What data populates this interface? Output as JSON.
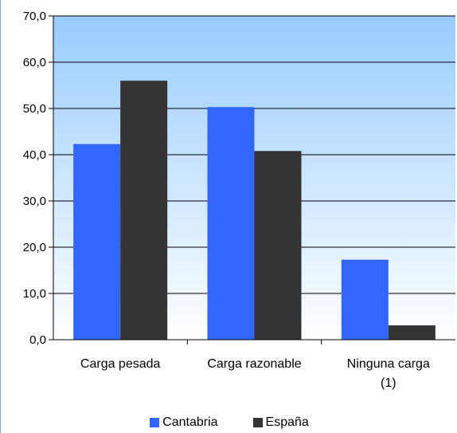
{
  "chart_data": {
    "type": "bar",
    "title": "",
    "xlabel": "",
    "ylabel": "",
    "categories": [
      {
        "lines": [
          "Carga pesada"
        ]
      },
      {
        "lines": [
          "Carga razonable"
        ]
      },
      {
        "lines": [
          "Ninguna carga",
          "(1)"
        ]
      }
    ],
    "series": [
      {
        "name": "Cantabria",
        "color": "#3366ff",
        "values": [
          42.3,
          50.3,
          17.3
        ]
      },
      {
        "name": "España",
        "color": "#333333",
        "values": [
          56.0,
          40.8,
          3.1
        ]
      }
    ],
    "ylim": [
      0,
      70
    ],
    "yticks": [
      "0,0",
      "10,0",
      "20,0",
      "30,0",
      "40,0",
      "50,0",
      "60,0",
      "70,0"
    ],
    "grid": true,
    "legend_position": "bottom",
    "plot_background": {
      "top": "#99ccff",
      "bottom": "#ffffff"
    }
  }
}
